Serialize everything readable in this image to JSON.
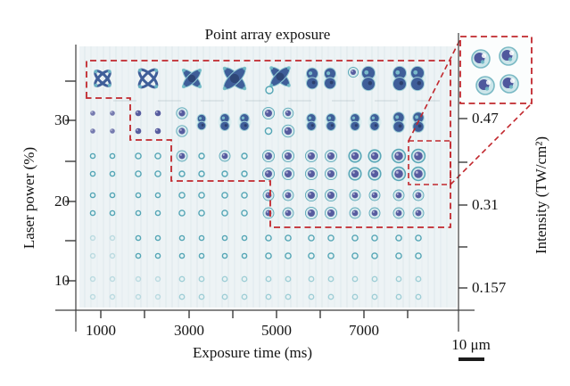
{
  "figure": {
    "title": "Point array exposure",
    "x_axis": {
      "label": "Exposure time (ms)",
      "tick_labels": [
        "1000",
        "3000",
        "5000",
        "7000"
      ]
    },
    "y_axis": {
      "label": "Laser power (%)",
      "tick_labels": [
        "30",
        "20",
        "10"
      ]
    },
    "right_axis": {
      "label": "Intensity (TW/cm²)",
      "tick_labels": [
        "0.47",
        "0.31",
        "0.157"
      ]
    },
    "scale_bar": {
      "label": "10 μm"
    }
  },
  "chart_data": {
    "type": "scatter",
    "title": "Point array exposure",
    "xlabel": "Exposure time (ms)",
    "ylabel": "Laser power (%)",
    "y2label": "Intensity (TW/cm²)",
    "exposure_times_ms": [
      1000,
      2000,
      3000,
      4000,
      5000,
      6000,
      7000,
      8000
    ],
    "x_tick_labels_shown": [
      "1000",
      "3000",
      "5000",
      "7000"
    ],
    "laser_power_percent": [
      35,
      30,
      25,
      20,
      15,
      10
    ],
    "power_tick_labels_shown": [
      "30",
      "20",
      "10"
    ],
    "intensity_axis_ticks": [
      {
        "laser_power_percent": 30,
        "intensity_tw_cm2": 0.47
      },
      {
        "laser_power_percent": 20,
        "intensity_tw_cm2": 0.31
      },
      {
        "laser_power_percent": 10,
        "intensity_tw_cm2": 0.157
      }
    ],
    "scale_bar_um": 10,
    "array_structure": "each (exposure time, laser power) cell is a 2x2 cluster of exposed voxels",
    "morphology_grid": {
      "rows": [
        {
          "power": 35,
          "cells": [
            "loops",
            "loops-x",
            "x",
            "x-big",
            "x-cluster",
            "double8",
            "single8",
            "double8-big"
          ]
        },
        {
          "power": 30,
          "cells": [
            "dots-sm",
            "dots",
            "dots-merge-r",
            "v8",
            "v8-irr",
            "v8",
            "v8",
            "v8-big"
          ]
        },
        {
          "power": 25,
          "cells": [
            "rings-xs",
            "rings",
            "rings-dot",
            "rings-dot",
            "dots-filled",
            "dots-filled",
            "dots-rim",
            "dots-rim-big"
          ]
        },
        {
          "power": 20,
          "cells": [
            "rings-xs",
            "rings-xs",
            "rings",
            "rings",
            "dots-sm-filled",
            "dots-filled",
            "dots-sm-filled",
            "dots-sm-filled"
          ]
        },
        {
          "power": 15,
          "cells": [
            "rings-faint",
            "rings-xs",
            "rings-xs",
            "rings-xs",
            "rings",
            "rings",
            "rings",
            "rings"
          ]
        },
        {
          "power": 10,
          "cells": [
            "rings-faint",
            "rings-faint",
            "rings-faint2",
            "rings-faint2",
            "rings-faint2",
            "rings-faint2",
            "rings-faint2",
            "rings-faint2"
          ]
        }
      ]
    },
    "morphology_legend": {
      "loops": "hollow crossed loops, over-exposed merged cluster",
      "x": "solid X-shaped merged cluster",
      "v8": "vertically merged dot pair (figure-8)",
      "dots": "separate filled dots",
      "rings": "hollow ring voxels",
      "rings-faint": "barely visible faint rings"
    },
    "threshold_boundary": {
      "style": "red dashed staircase",
      "cells_inside": {
        "35": ">=1000 ms",
        "30": ">=2000 ms",
        "25": ">=3000 ms",
        "20": ">=5000 ms",
        "15": "none",
        "10": "none"
      }
    },
    "zoom_inset": {
      "source_cell": {
        "laser_power_percent": 25,
        "exposure_ms": 8000
      },
      "content": "2x2 magnified dots with teal rims and purple cores"
    },
    "colors": {
      "boundary": "#c1272d",
      "panel": "#edf3f5",
      "ring_teal": "#54a5b5",
      "ring_teal_faint": "#8cc5cf",
      "dot_purple": "#575c9f",
      "blob_blue": "#3f5e99",
      "axis": "#3c3c3c"
    }
  }
}
